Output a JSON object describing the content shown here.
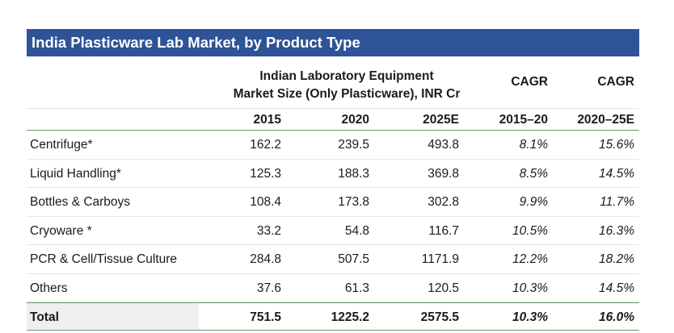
{
  "title": "India Plasticware Lab Market, by Product Type",
  "header": {
    "market_line1": "Indian Laboratory Equipment",
    "market_line2": "Market Size (Only Plasticware),  INR Cr",
    "cagr1": "CAGR",
    "cagr2": "CAGR",
    "years": [
      "2015",
      "2020",
      "2025E",
      "2015–20",
      "2020–25E"
    ]
  },
  "rows": [
    {
      "label": "Centrifuge*",
      "v2015": "162.2",
      "v2020": "239.5",
      "v2025": "493.8",
      "cagr1": "8.1%",
      "cagr2": "15.6%"
    },
    {
      "label": "Liquid Handling*",
      "v2015": "125.3",
      "v2020": "188.3",
      "v2025": "369.8",
      "cagr1": "8.5%",
      "cagr2": "14.5%"
    },
    {
      "label": "Bottles & Carboys",
      "v2015": "108.4",
      "v2020": "173.8",
      "v2025": "302.8",
      "cagr1": "9.9%",
      "cagr2": "11.7%"
    },
    {
      "label": "Cryoware *",
      "v2015": "33.2",
      "v2020": "54.8",
      "v2025": "116.7",
      "cagr1": "10.5%",
      "cagr2": "16.3%"
    },
    {
      "label": "PCR & Cell/Tissue Culture",
      "v2015": "284.8",
      "v2020": "507.5",
      "v2025": "1171.9",
      "cagr1": "12.2%",
      "cagr2": "18.2%"
    },
    {
      "label": "Others",
      "v2015": "37.6",
      "v2020": "61.3",
      "v2025": "120.5",
      "cagr1": "10.3%",
      "cagr2": "14.5%"
    }
  ],
  "total": {
    "label": "Total",
    "v2015": "751.5",
    "v2020": "1225.2",
    "v2025": "2575.5",
    "cagr1": "10.3%",
    "cagr2": "16.0%"
  },
  "colors": {
    "title_bg": "#2e5396",
    "rule_green": "#5aa16b"
  }
}
